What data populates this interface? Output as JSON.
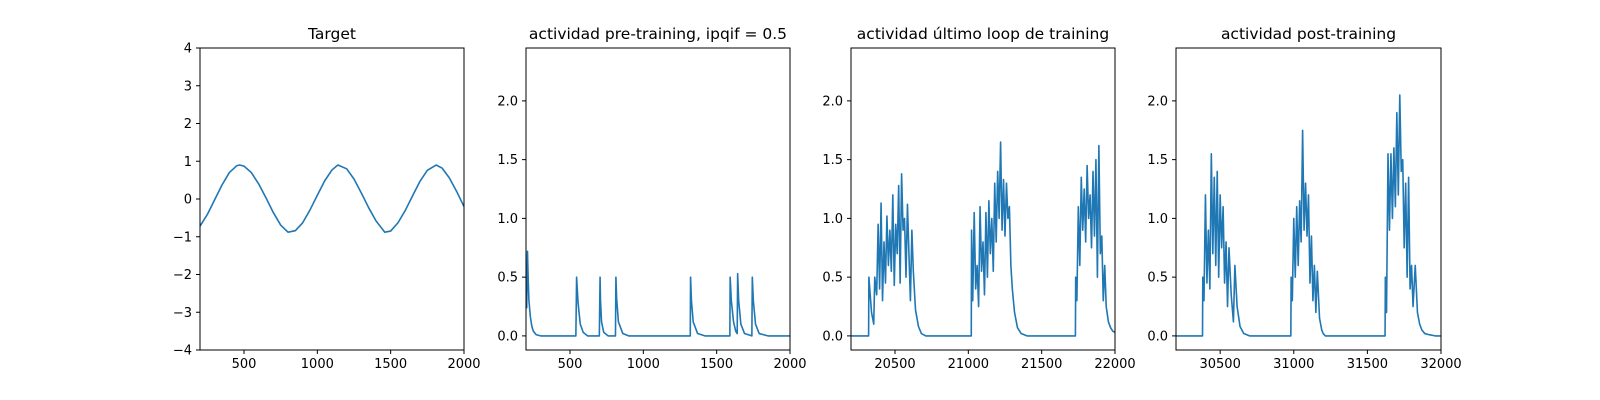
{
  "chart_data": [
    {
      "type": "line",
      "title": "Target",
      "xlim": [
        200,
        2000
      ],
      "ylim": [
        -4,
        4
      ],
      "xticks": [
        500,
        1000,
        1500,
        2000
      ],
      "yticks": [
        -4,
        -3,
        -2,
        -1,
        0,
        1,
        2,
        3,
        4
      ],
      "xtick_labels": [
        "500",
        "1000",
        "1500",
        "2000"
      ],
      "ytick_labels": [
        "−4",
        "−3",
        "−2",
        "−1",
        "0",
        "1",
        "2",
        "3",
        "4"
      ],
      "color": "#1f77b4",
      "grid": false,
      "series": [
        {
          "x": [
            200,
            250,
            300,
            350,
            400,
            450,
            470,
            500,
            550,
            600,
            650,
            700,
            750,
            800,
            850,
            900,
            950,
            1000,
            1050,
            1100,
            1140,
            1200,
            1250,
            1300,
            1350,
            1400,
            1460,
            1500,
            1550,
            1600,
            1650,
            1700,
            1750,
            1810,
            1850,
            1900,
            1950,
            2000
          ],
          "values": [
            -0.72,
            -0.41,
            -0.02,
            0.37,
            0.7,
            0.88,
            0.9,
            0.87,
            0.7,
            0.4,
            0.03,
            -0.36,
            -0.69,
            -0.88,
            -0.84,
            -0.63,
            -0.29,
            0.1,
            0.48,
            0.77,
            0.9,
            0.8,
            0.53,
            0.16,
            -0.23,
            -0.58,
            -0.88,
            -0.85,
            -0.63,
            -0.3,
            0.09,
            0.47,
            0.76,
            0.9,
            0.82,
            0.56,
            0.2,
            -0.2
          ]
        }
      ]
    },
    {
      "type": "line",
      "title": "actividad pre-training, ipqif = 0.5",
      "xlim": [
        200,
        2000
      ],
      "ylim": [
        -0.12,
        2.45
      ],
      "xticks": [
        500,
        1000,
        1500,
        2000
      ],
      "yticks": [
        0,
        0.5,
        1,
        1.5,
        2
      ],
      "xtick_labels": [
        "500",
        "1000",
        "1500",
        "2000"
      ],
      "ytick_labels": [
        "0.0",
        "0.5",
        "1.0",
        "1.5",
        "2.0"
      ],
      "color": "#1f77b4",
      "grid": false,
      "series": [
        {
          "x": [
            200,
            205,
            210,
            215,
            220,
            230,
            240,
            250,
            270,
            300,
            350,
            400,
            450,
            500,
            530,
            540,
            545,
            555,
            570,
            590,
            620,
            660,
            700,
            705,
            708,
            715,
            730,
            760,
            810,
            813,
            818,
            830,
            860,
            900,
            1000,
            1100,
            1200,
            1300,
            1320,
            1322,
            1328,
            1340,
            1370,
            1420,
            1500,
            1590,
            1592,
            1600,
            1615,
            1630,
            1640,
            1643,
            1650,
            1665,
            1690,
            1740,
            1743,
            1750,
            1765,
            1790,
            1850,
            1900,
            1950,
            2000
          ],
          "values": [
            0.35,
            0.24,
            0.72,
            0.48,
            0.3,
            0.16,
            0.08,
            0.04,
            0.01,
            0.0,
            0.0,
            0.0,
            0.0,
            0.0,
            0.0,
            0.0,
            0.5,
            0.28,
            0.1,
            0.03,
            0.0,
            0.0,
            0.0,
            0.5,
            0.3,
            0.12,
            0.03,
            0.0,
            0.0,
            0.5,
            0.32,
            0.12,
            0.02,
            0.0,
            0.0,
            0.0,
            0.0,
            0.0,
            0.0,
            0.5,
            0.3,
            0.12,
            0.02,
            0.0,
            0.0,
            0.0,
            0.5,
            0.3,
            0.12,
            0.04,
            0.02,
            0.53,
            0.3,
            0.1,
            0.02,
            0.0,
            0.5,
            0.3,
            0.1,
            0.02,
            0.0,
            0.0,
            0.0,
            0.0
          ]
        }
      ]
    },
    {
      "type": "line",
      "title": "actividad último loop de training",
      "xlim": [
        20200,
        22000
      ],
      "ylim": [
        -0.12,
        2.45
      ],
      "xticks": [
        20500,
        21000,
        21500,
        22000
      ],
      "yticks": [
        0,
        0.5,
        1,
        1.5,
        2
      ],
      "xtick_labels": [
        "20500",
        "21000",
        "21500",
        "22000"
      ],
      "ytick_labels": [
        "0.0",
        "0.5",
        "1.0",
        "1.5",
        "2.0"
      ],
      "color": "#1f77b4",
      "grid": false,
      "series": [
        {
          "x": [
            20200,
            20250,
            20300,
            20320,
            20322,
            20340,
            20355,
            20362,
            20375,
            20385,
            20395,
            20405,
            20415,
            20425,
            20435,
            20445,
            20455,
            20465,
            20475,
            20485,
            20495,
            20505,
            20515,
            20525,
            20535,
            20545,
            20555,
            20565,
            20575,
            20585,
            20595,
            20605,
            20615,
            20625,
            20640,
            20660,
            20680,
            20710,
            20750,
            20800,
            20900,
            21000,
            21020,
            21022,
            21030,
            21040,
            21050,
            21060,
            21070,
            21080,
            21090,
            21100,
            21110,
            21120,
            21130,
            21140,
            21150,
            21160,
            21170,
            21180,
            21190,
            21200,
            21210,
            21220,
            21230,
            21240,
            21250,
            21260,
            21270,
            21280,
            21290,
            21300,
            21315,
            21335,
            21360,
            21400,
            21500,
            21600,
            21700,
            21730,
            21732,
            21740,
            21750,
            21760,
            21770,
            21780,
            21790,
            21800,
            21810,
            21820,
            21830,
            21840,
            21850,
            21860,
            21870,
            21880,
            21890,
            21900,
            21910,
            21920,
            21930,
            21940,
            21955,
            21970,
            21985,
            22000
          ],
          "values": [
            0.0,
            0.0,
            0.0,
            0.0,
            0.5,
            0.2,
            0.1,
            0.5,
            0.35,
            0.95,
            0.4,
            1.13,
            0.3,
            0.8,
            0.45,
            1.02,
            0.6,
            0.9,
            0.55,
            1.2,
            0.43,
            0.95,
            0.7,
            1.28,
            0.45,
            1.38,
            0.9,
            1.0,
            0.5,
            1.12,
            0.7,
            0.3,
            0.9,
            0.55,
            0.22,
            0.08,
            0.02,
            0.0,
            0.0,
            0.0,
            0.0,
            0.0,
            0.0,
            0.9,
            0.3,
            1.05,
            0.4,
            0.6,
            0.25,
            1.1,
            0.55,
            0.8,
            0.35,
            1.05,
            0.5,
            1.15,
            0.7,
            1.0,
            0.55,
            1.3,
            0.8,
            1.4,
            1.0,
            1.65,
            0.9,
            1.33,
            0.85,
            1.3,
            1.0,
            1.1,
            0.6,
            0.4,
            0.2,
            0.07,
            0.02,
            0.0,
            0.0,
            0.0,
            0.0,
            0.0,
            0.5,
            0.3,
            1.1,
            0.6,
            1.35,
            0.9,
            1.25,
            0.8,
            1.45,
            1.0,
            1.2,
            0.75,
            1.4,
            0.85,
            1.5,
            0.5,
            1.62,
            0.7,
            0.85,
            0.3,
            0.6,
            0.25,
            0.12,
            0.07,
            0.04,
            0.03
          ]
        }
      ]
    },
    {
      "type": "line",
      "title": "actividad post-training",
      "xlim": [
        30200,
        32000
      ],
      "ylim": [
        -0.12,
        2.45
      ],
      "xticks": [
        30500,
        31000,
        31500,
        32000
      ],
      "yticks": [
        0,
        0.5,
        1,
        1.5,
        2
      ],
      "xtick_labels": [
        "30500",
        "31000",
        "31500",
        "32000"
      ],
      "ytick_labels": [
        "0.0",
        "0.5",
        "1.0",
        "1.5",
        "2.0"
      ],
      "color": "#1f77b4",
      "grid": false,
      "series": [
        {
          "x": [
            30200,
            30300,
            30380,
            30382,
            30390,
            30400,
            30410,
            30420,
            30430,
            30440,
            30450,
            30460,
            30470,
            30480,
            30490,
            30500,
            30510,
            30520,
            30530,
            30540,
            30550,
            30560,
            30575,
            30590,
            30600,
            30615,
            30635,
            30660,
            30700,
            30800,
            30900,
            30980,
            30982,
            30990,
            31000,
            31010,
            31020,
            31030,
            31040,
            31050,
            31060,
            31070,
            31080,
            31090,
            31100,
            31110,
            31120,
            31130,
            31140,
            31150,
            31160,
            31175,
            31190,
            31200,
            31215,
            31235,
            31260,
            31300,
            31400,
            31500,
            31600,
            31620,
            31622,
            31630,
            31640,
            31650,
            31660,
            31670,
            31680,
            31690,
            31700,
            31710,
            31720,
            31730,
            31740,
            31750,
            31760,
            31770,
            31780,
            31790,
            31800,
            31810,
            31825,
            31840,
            31855,
            31870,
            31890,
            31920,
            31960,
            32000
          ],
          "values": [
            0.0,
            0.0,
            0.0,
            0.5,
            0.3,
            1.2,
            0.45,
            0.9,
            0.4,
            1.55,
            0.7,
            1.35,
            0.6,
            1.4,
            0.5,
            1.2,
            0.75,
            1.1,
            0.45,
            0.8,
            0.25,
            0.75,
            0.35,
            0.12,
            0.6,
            0.25,
            0.08,
            0.02,
            0.0,
            0.0,
            0.0,
            0.0,
            0.5,
            0.3,
            1.0,
            0.5,
            1.1,
            0.6,
            1.15,
            0.8,
            1.75,
            0.9,
            1.3,
            0.85,
            1.2,
            0.45,
            0.85,
            0.3,
            0.6,
            0.2,
            0.55,
            0.15,
            0.05,
            0.02,
            0.0,
            0.0,
            0.0,
            0.0,
            0.0,
            0.0,
            0.0,
            0.0,
            0.5,
            0.2,
            1.55,
            0.9,
            1.55,
            1.0,
            1.6,
            1.1,
            1.9,
            1.2,
            2.05,
            1.4,
            1.5,
            0.75,
            1.3,
            0.5,
            1.35,
            0.4,
            0.6,
            0.25,
            0.6,
            0.2,
            0.1,
            0.05,
            0.02,
            0.01,
            0.0,
            0.0
          ]
        }
      ]
    }
  ]
}
